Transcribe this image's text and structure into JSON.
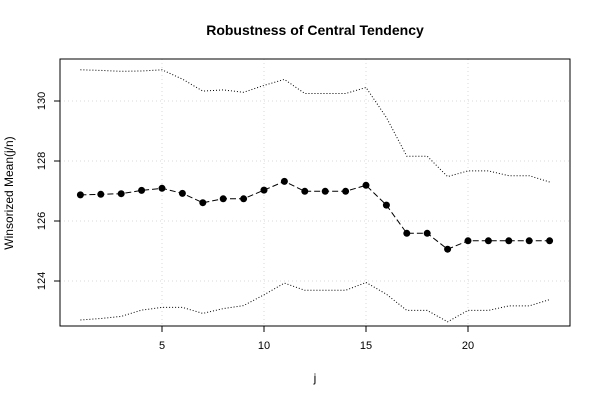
{
  "chart_data": {
    "type": "line",
    "title": "Robustness of Central Tendency",
    "xlabel": "j",
    "ylabel": "Winsorized Mean(j/n)",
    "xlim": [
      0,
      25
    ],
    "ylim": [
      122.5,
      131.4
    ],
    "xticks": [
      5,
      10,
      15,
      20
    ],
    "yticks": [
      124,
      126,
      128,
      130
    ],
    "grid": true,
    "x": [
      1,
      2,
      3,
      4,
      5,
      6,
      7,
      8,
      9,
      10,
      11,
      12,
      13,
      14,
      15,
      16,
      17,
      18,
      19,
      20,
      21,
      22,
      23,
      24
    ],
    "series": [
      {
        "role": "mean",
        "style": "points-dashed",
        "values": [
          126.87,
          126.89,
          126.91,
          127.02,
          127.09,
          126.92,
          126.61,
          126.74,
          126.74,
          127.03,
          127.32,
          126.99,
          126.99,
          126.99,
          127.19,
          126.53,
          125.59,
          125.59,
          125.06,
          125.34,
          125.34,
          125.34,
          125.34,
          125.34
        ]
      },
      {
        "role": "upper",
        "style": "dotted",
        "values": [
          131.04,
          131.02,
          130.99,
          131.0,
          131.04,
          130.73,
          130.33,
          130.37,
          130.29,
          130.52,
          130.72,
          130.25,
          130.25,
          130.25,
          130.45,
          129.45,
          128.16,
          128.16,
          127.48,
          127.67,
          127.67,
          127.51,
          127.51,
          127.3
        ]
      },
      {
        "role": "lower",
        "style": "dotted",
        "values": [
          122.7,
          122.75,
          122.82,
          123.03,
          123.12,
          123.12,
          122.92,
          123.08,
          123.18,
          123.54,
          123.93,
          123.69,
          123.69,
          123.69,
          123.95,
          123.56,
          123.02,
          123.02,
          122.64,
          123.02,
          123.02,
          123.17,
          123.17,
          123.38
        ]
      }
    ]
  }
}
